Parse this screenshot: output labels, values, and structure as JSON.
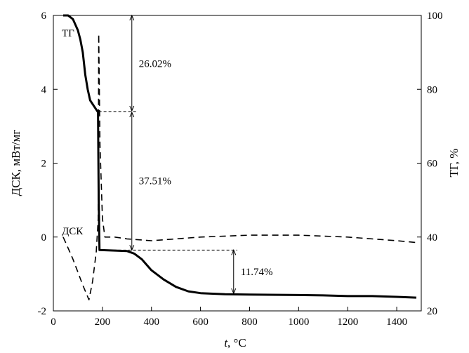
{
  "chart_data": {
    "type": "line",
    "xlabel": "t, °C",
    "ylabel_left": "ДСК, мВт/мг",
    "ylabel_right": "ТГ, %",
    "xlim": [
      0,
      1500
    ],
    "ylim_left": [
      -2,
      6
    ],
    "ylim_right": [
      20,
      100
    ],
    "xticks": [
      0,
      200,
      400,
      600,
      800,
      1000,
      1200,
      1400
    ],
    "yticks_left": [
      -2,
      0,
      2,
      4,
      6
    ],
    "yticks_right": [
      20,
      40,
      60,
      80,
      100
    ],
    "grid": false,
    "series": [
      {
        "name": "ТГ",
        "axis": "right",
        "style": "solid",
        "x": [
          40,
          60,
          80,
          100,
          110,
          120,
          130,
          140,
          150,
          170,
          182,
          185,
          188,
          300,
          330,
          360,
          400,
          450,
          500,
          550,
          600,
          700,
          800,
          1000,
          1100,
          1200,
          1300,
          1400,
          1480
        ],
        "y": [
          100,
          100,
          99,
          96,
          93.5,
          90,
          84,
          80,
          77,
          75,
          73.8,
          50,
          36.5,
          36.2,
          35.5,
          34,
          31,
          28.5,
          26.5,
          25.3,
          24.8,
          24.5,
          24.4,
          24.3,
          24.2,
          24,
          24,
          23.8,
          23.6
        ]
      },
      {
        "name": "ДСК",
        "axis": "left",
        "style": "dashed",
        "x": [
          40,
          60,
          80,
          100,
          120,
          145,
          160,
          175,
          183,
          185,
          190,
          200,
          210,
          250,
          300,
          400,
          600,
          800,
          1000,
          1200,
          1400,
          1480
        ],
        "y": [
          0,
          -0.3,
          -0.6,
          -0.95,
          -1.3,
          -1.7,
          -1.2,
          -0.4,
          0.5,
          5.5,
          2.5,
          0.5,
          0,
          0,
          -0.05,
          -0.1,
          0,
          0.05,
          0.05,
          0,
          -0.1,
          -0.15
        ]
      }
    ],
    "annotations": [
      {
        "text": "26.02%",
        "from": 100,
        "to": 73.98
      },
      {
        "text": "37.51%",
        "from": 73.98,
        "to": 36.47
      },
      {
        "text": "11.74%",
        "from": 36.47,
        "to": 24.73
      }
    ]
  }
}
